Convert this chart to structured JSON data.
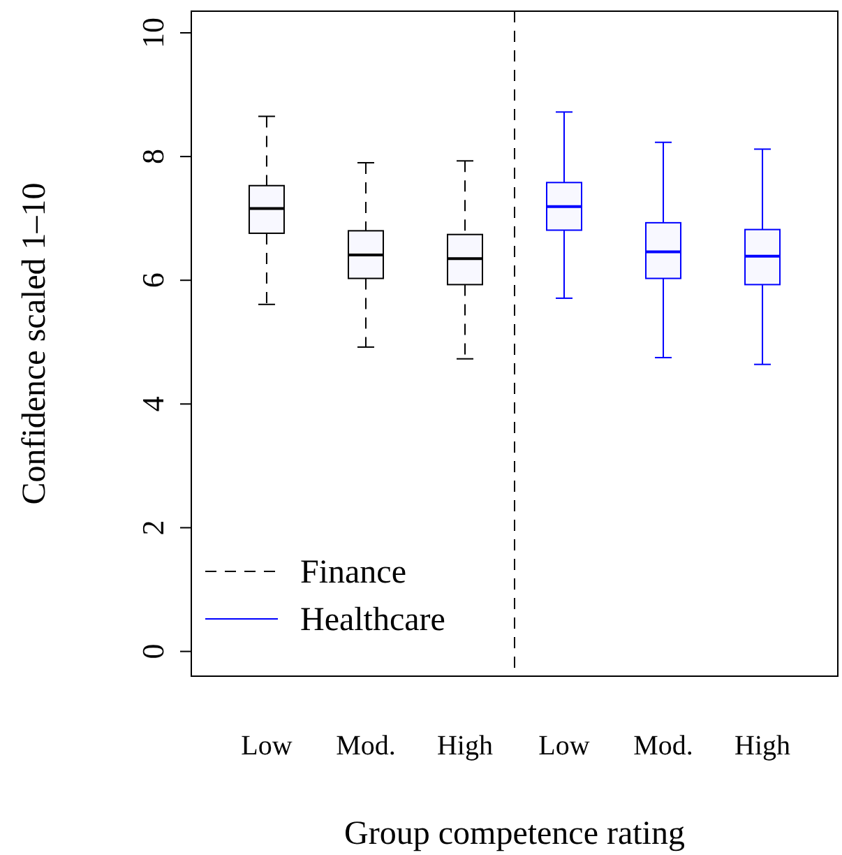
{
  "chart_data": {
    "type": "box",
    "xlabel": "Group competence rating",
    "ylabel": "Confidence scaled 1–10",
    "categories": [
      "Low",
      "Mod.",
      "High",
      "Low",
      "Mod.",
      "High"
    ],
    "ylim": [
      -0.4,
      10.35
    ],
    "yticks": [
      0,
      2,
      4,
      6,
      8,
      10
    ],
    "grid": false,
    "legend": "bottom left",
    "series": [
      {
        "name": "Finance",
        "color": "#000000",
        "line_style": "dashed",
        "boxes": [
          {
            "low": 5.61,
            "q1": 6.76,
            "median": 7.16,
            "q3": 7.53,
            "high": 8.65
          },
          {
            "low": 4.92,
            "q1": 6.03,
            "median": 6.41,
            "q3": 6.8,
            "high": 7.9
          },
          {
            "low": 4.73,
            "q1": 5.93,
            "median": 6.35,
            "q3": 6.74,
            "high": 7.93
          },
          null,
          null,
          null
        ]
      },
      {
        "name": "Healthcare",
        "color": "#0000ff",
        "line_style": "solid",
        "boxes": [
          null,
          null,
          null,
          {
            "low": 5.71,
            "q1": 6.81,
            "median": 7.19,
            "q3": 7.58,
            "high": 8.72
          },
          {
            "low": 4.75,
            "q1": 6.03,
            "median": 6.46,
            "q3": 6.93,
            "high": 8.23
          },
          {
            "low": 4.64,
            "q1": 5.93,
            "median": 6.39,
            "q3": 6.82,
            "high": 8.12
          }
        ]
      }
    ]
  }
}
